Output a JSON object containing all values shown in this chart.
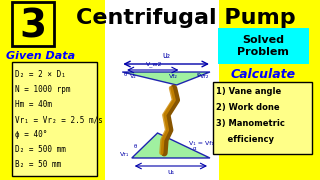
{
  "title": "Centrifugal Pump",
  "number": "3",
  "bg_color": "#FFFF00",
  "header_bg": "#FFFF00",
  "white_bg": "#FFFFFF",
  "cyan_bg": "#00FFFF",
  "yellow_box_bg": "#FFFF11",
  "given_data_title": "Given Data",
  "given_data_lines": [
    "D₂ = 2 × D₁",
    "N = 1000 rpm",
    "Hm = 40m",
    "Vr₁ = Vr₂ = 2.5 m/s",
    "ϕ = 40°",
    "D₂ = 500 mm",
    "B₂ = 50 mm"
  ],
  "solved_text": "Solved\nProblem",
  "calculate_title": "Calculate",
  "calculate_lines": [
    "1) Vane angle",
    "2) Work done",
    "3) Manometric\n    efficiency"
  ],
  "given_data_color": "#0000FF",
  "calculate_color": "#0000FF",
  "diagram_line_color": "#0000AA",
  "vane_fill_color": "#90EE90",
  "vane_outline_color": "#0000AA",
  "blade_color": "#CC8800",
  "blade_dark": "#885500"
}
